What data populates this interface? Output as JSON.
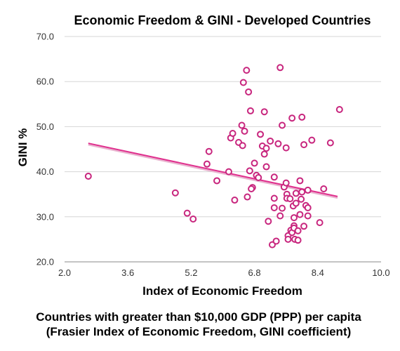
{
  "chart_data": {
    "type": "scatter",
    "title": "Economic Freedom & GINI - Developed Countries",
    "xlabel": "Index of Economic Freedom",
    "ylabel": "GINI %",
    "xlim": [
      2.0,
      10.0
    ],
    "ylim": [
      20.0,
      70.0
    ],
    "x_ticks": [
      "2.0",
      "3.6",
      "5.2",
      "6.8",
      "8.4",
      "10.0"
    ],
    "y_ticks": [
      "20.0",
      "30.0",
      "40.0",
      "50.0",
      "60.0",
      "70.0"
    ],
    "grid": "horizontal",
    "marker_color": "#c8267e",
    "trendline": {
      "color": "#e0308e",
      "x": [
        2.6,
        8.9
      ],
      "y": [
        46.3,
        34.5
      ]
    },
    "captions": [
      "Countries with greater than $10,000 GDP (PPP) per capita",
      "(Frasier Index of Economic Freedom, GINI coefficient)"
    ],
    "points": [
      [
        2.6,
        39.0
      ],
      [
        4.8,
        35.3
      ],
      [
        5.1,
        30.8
      ],
      [
        5.25,
        29.5
      ],
      [
        5.65,
        44.5
      ],
      [
        5.6,
        41.7
      ],
      [
        5.85,
        38.0
      ],
      [
        6.15,
        40.0
      ],
      [
        6.2,
        47.5
      ],
      [
        6.25,
        48.5
      ],
      [
        6.3,
        33.7
      ],
      [
        6.4,
        46.5
      ],
      [
        6.5,
        45.8
      ],
      [
        6.48,
        50.3
      ],
      [
        6.52,
        59.8
      ],
      [
        6.55,
        49.0
      ],
      [
        6.6,
        62.5
      ],
      [
        6.65,
        57.7
      ],
      [
        6.7,
        53.5
      ],
      [
        6.68,
        40.2
      ],
      [
        6.62,
        34.4
      ],
      [
        6.75,
        36.5
      ],
      [
        6.72,
        36.2
      ],
      [
        6.8,
        41.9
      ],
      [
        6.85,
        39.2
      ],
      [
        6.9,
        38.7
      ],
      [
        6.95,
        48.3
      ],
      [
        7.0,
        45.7
      ],
      [
        7.05,
        53.3
      ],
      [
        7.05,
        43.9
      ],
      [
        7.1,
        45.2
      ],
      [
        7.1,
        41.1
      ],
      [
        7.15,
        29.0
      ],
      [
        7.2,
        46.8
      ],
      [
        7.25,
        23.8
      ],
      [
        7.3,
        38.8
      ],
      [
        7.3,
        34.1
      ],
      [
        7.3,
        32.0
      ],
      [
        7.35,
        24.6
      ],
      [
        7.4,
        46.2
      ],
      [
        7.45,
        63.1
      ],
      [
        7.45,
        30.2
      ],
      [
        7.5,
        50.3
      ],
      [
        7.5,
        31.9
      ],
      [
        7.55,
        36.6
      ],
      [
        7.6,
        45.3
      ],
      [
        7.6,
        37.5
      ],
      [
        7.62,
        35.0
      ],
      [
        7.62,
        34.1
      ],
      [
        7.65,
        25.8
      ],
      [
        7.65,
        25.0
      ],
      [
        7.7,
        34.0
      ],
      [
        7.72,
        27.0
      ],
      [
        7.75,
        26.5
      ],
      [
        7.75,
        51.9
      ],
      [
        7.78,
        32.4
      ],
      [
        7.8,
        29.8
      ],
      [
        7.8,
        28.0
      ],
      [
        7.8,
        27.5
      ],
      [
        7.82,
        25.0
      ],
      [
        7.85,
        35.2
      ],
      [
        7.85,
        33.0
      ],
      [
        7.9,
        26.9
      ],
      [
        7.9,
        24.8
      ],
      [
        7.95,
        30.5
      ],
      [
        7.95,
        38.0
      ],
      [
        7.98,
        33.9
      ],
      [
        8.0,
        35.5
      ],
      [
        8.0,
        52.1
      ],
      [
        8.05,
        46.0
      ],
      [
        8.05,
        27.9
      ],
      [
        8.1,
        32.5
      ],
      [
        8.15,
        35.9
      ],
      [
        8.15,
        32.0
      ],
      [
        8.15,
        30.2
      ],
      [
        8.25,
        47.0
      ],
      [
        8.45,
        28.7
      ],
      [
        8.55,
        36.2
      ],
      [
        8.72,
        46.4
      ],
      [
        8.95,
        53.8
      ]
    ]
  }
}
